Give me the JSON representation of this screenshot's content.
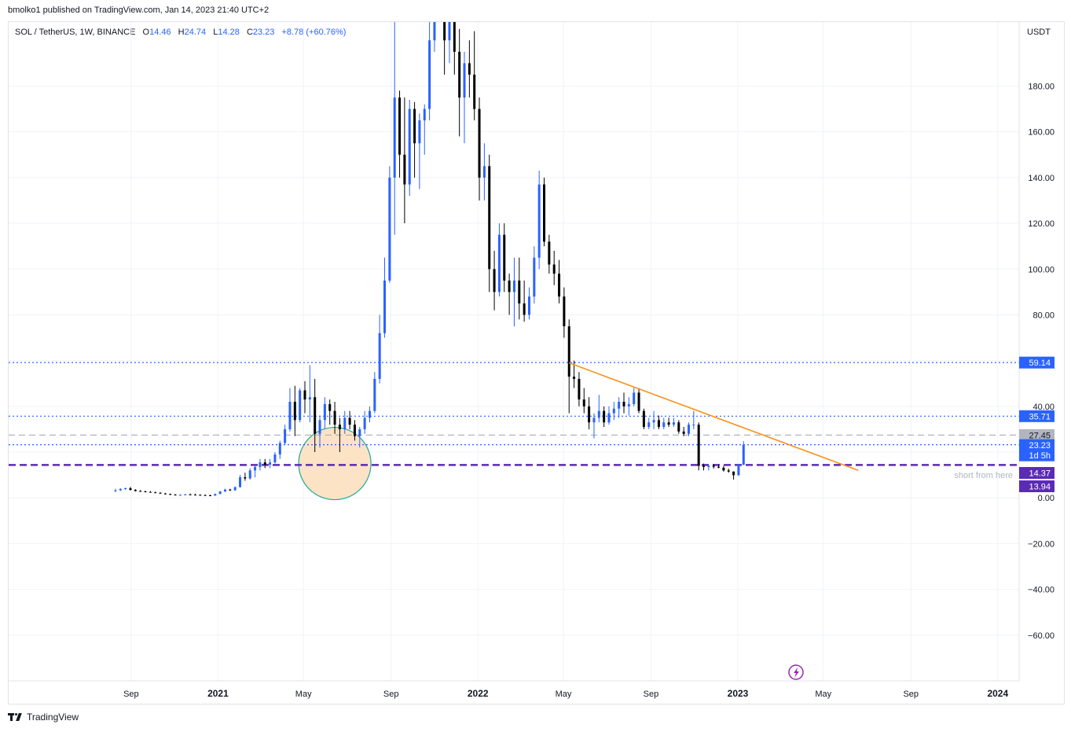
{
  "publisher": "bmolko1 published on TradingView.com, Jan 14, 2023 21:40 UTC+2",
  "legend": {
    "symbol": "SOL / TetherUS, 1W, BINANCE",
    "o_label": "O",
    "o": "14.46",
    "h_label": "H",
    "h": "24.74",
    "l_label": "L",
    "l": "14.28",
    "c_label": "C",
    "c": "23.23",
    "chg": "+8.78 (+60.76%)"
  },
  "footer": {
    "brand": "TradingView"
  },
  "colors": {
    "up": "#2962ff",
    "down": "#000000",
    "trendline": "#f7931a",
    "level_blue": "#2962ff",
    "level_purple": "#5b2bb5",
    "level_gray": "#b2b5be",
    "circle_fill": "#fde3c6",
    "circle_stroke": "#22ab94",
    "event_icon": "#9c27b0"
  },
  "chart_data": {
    "type": "candlestick",
    "ylabel": "USDT",
    "y_tick_labels": [
      "−60.00",
      "−40.00",
      "−20.00",
      "0.00",
      "20.00",
      "40.00",
      "60.00",
      "80.00",
      "100.00",
      "120.00",
      "140.00",
      "160.00",
      "180.00"
    ],
    "y_ticks": [
      -60,
      -40,
      -20,
      0,
      20,
      40,
      60,
      80,
      100,
      120,
      140,
      160,
      180
    ],
    "ylim": [
      -80,
      208
    ],
    "x_tick_labels": [
      "Sep",
      "2021",
      "May",
      "Sep",
      "2022",
      "May",
      "Sep",
      "2023",
      "May",
      "Sep",
      "2024"
    ],
    "x_ticks": [
      "2020-09-01",
      "2021-01-01",
      "2021-05-01",
      "2021-09-01",
      "2022-01-01",
      "2022-05-01",
      "2022-09-01",
      "2023-01-01",
      "2023-05-01",
      "2023-09-01",
      "2024-01-01"
    ],
    "xlim": [
      "2020-03-13",
      "2024-01-31"
    ],
    "grid": true,
    "candles": [
      {
        "date": "2020-08-10",
        "o": 3.0,
        "h": 4.0,
        "l": 2.5,
        "c": 3.3
      },
      {
        "date": "2020-08-17",
        "o": 3.3,
        "h": 4.2,
        "l": 3.0,
        "c": 3.9
      },
      {
        "date": "2020-08-24",
        "o": 3.9,
        "h": 4.5,
        "l": 3.5,
        "c": 4.2
      },
      {
        "date": "2020-08-31",
        "o": 4.2,
        "h": 4.8,
        "l": 3.2,
        "c": 3.5
      },
      {
        "date": "2020-09-07",
        "o": 3.5,
        "h": 3.8,
        "l": 2.8,
        "c": 3.0
      },
      {
        "date": "2020-09-14",
        "o": 3.0,
        "h": 3.4,
        "l": 2.6,
        "c": 2.8
      },
      {
        "date": "2020-09-21",
        "o": 2.8,
        "h": 3.2,
        "l": 2.5,
        "c": 2.6
      },
      {
        "date": "2020-09-28",
        "o": 2.6,
        "h": 3.0,
        "l": 2.3,
        "c": 2.4
      },
      {
        "date": "2020-10-05",
        "o": 2.4,
        "h": 2.7,
        "l": 2.1,
        "c": 2.2
      },
      {
        "date": "2020-10-12",
        "o": 2.2,
        "h": 2.5,
        "l": 1.8,
        "c": 1.9
      },
      {
        "date": "2020-10-19",
        "o": 1.9,
        "h": 2.2,
        "l": 1.5,
        "c": 1.7
      },
      {
        "date": "2020-10-26",
        "o": 1.7,
        "h": 1.9,
        "l": 1.2,
        "c": 1.4
      },
      {
        "date": "2020-11-02",
        "o": 1.4,
        "h": 1.7,
        "l": 1.1,
        "c": 1.3
      },
      {
        "date": "2020-11-09",
        "o": 1.3,
        "h": 1.6,
        "l": 1.0,
        "c": 1.3
      },
      {
        "date": "2020-11-16",
        "o": 1.3,
        "h": 1.7,
        "l": 1.1,
        "c": 1.5
      },
      {
        "date": "2020-11-23",
        "o": 1.5,
        "h": 1.9,
        "l": 1.2,
        "c": 1.4
      },
      {
        "date": "2020-11-30",
        "o": 1.4,
        "h": 1.8,
        "l": 1.1,
        "c": 1.3
      },
      {
        "date": "2020-12-07",
        "o": 1.3,
        "h": 1.6,
        "l": 1.0,
        "c": 1.2
      },
      {
        "date": "2020-12-14",
        "o": 1.2,
        "h": 1.5,
        "l": 0.9,
        "c": 1.1
      },
      {
        "date": "2020-12-21",
        "o": 1.1,
        "h": 1.4,
        "l": 0.9,
        "c": 1.0
      },
      {
        "date": "2020-12-28",
        "o": 1.0,
        "h": 1.9,
        "l": 0.9,
        "c": 1.7
      },
      {
        "date": "2021-01-04",
        "o": 1.7,
        "h": 3.0,
        "l": 1.6,
        "c": 2.8
      },
      {
        "date": "2021-01-11",
        "o": 2.8,
        "h": 4.0,
        "l": 2.6,
        "c": 3.6
      },
      {
        "date": "2021-01-18",
        "o": 3.6,
        "h": 4.0,
        "l": 3.0,
        "c": 3.3
      },
      {
        "date": "2021-01-25",
        "o": 3.3,
        "h": 5.0,
        "l": 3.2,
        "c": 4.7
      },
      {
        "date": "2021-02-01",
        "o": 4.7,
        "h": 10.0,
        "l": 4.5,
        "c": 9.0
      },
      {
        "date": "2021-02-08",
        "o": 9.0,
        "h": 11.0,
        "l": 7.5,
        "c": 8.5
      },
      {
        "date": "2021-02-15",
        "o": 8.5,
        "h": 13.0,
        "l": 8.0,
        "c": 12.0
      },
      {
        "date": "2021-02-22",
        "o": 12.0,
        "h": 14.0,
        "l": 9.0,
        "c": 13.5
      },
      {
        "date": "2021-03-01",
        "o": 13.5,
        "h": 17.0,
        "l": 12.0,
        "c": 15.5
      },
      {
        "date": "2021-03-08",
        "o": 15.5,
        "h": 17.0,
        "l": 13.0,
        "c": 14.5
      },
      {
        "date": "2021-03-15",
        "o": 14.5,
        "h": 17.0,
        "l": 13.0,
        "c": 15.5
      },
      {
        "date": "2021-03-22",
        "o": 15.5,
        "h": 20.0,
        "l": 15.0,
        "c": 19.0
      },
      {
        "date": "2021-03-29",
        "o": 19.0,
        "h": 25.0,
        "l": 17.0,
        "c": 24.0
      },
      {
        "date": "2021-04-05",
        "o": 24.0,
        "h": 32.0,
        "l": 23.0,
        "c": 30.0
      },
      {
        "date": "2021-04-12",
        "o": 30.0,
        "h": 48.0,
        "l": 29.0,
        "c": 42.0
      },
      {
        "date": "2021-04-19",
        "o": 42.0,
        "h": 49.0,
        "l": 27.0,
        "c": 34.0
      },
      {
        "date": "2021-04-26",
        "o": 34.0,
        "h": 48.0,
        "l": 33.0,
        "c": 47.0
      },
      {
        "date": "2021-05-03",
        "o": 47.0,
        "h": 51.0,
        "l": 37.0,
        "c": 43.0
      },
      {
        "date": "2021-05-10",
        "o": 43.0,
        "h": 58.0,
        "l": 33.0,
        "c": 44.0
      },
      {
        "date": "2021-05-17",
        "o": 44.0,
        "h": 52.0,
        "l": 20.0,
        "c": 28.0
      },
      {
        "date": "2021-05-24",
        "o": 28.0,
        "h": 36.0,
        "l": 22.0,
        "c": 34.0
      },
      {
        "date": "2021-05-31",
        "o": 34.0,
        "h": 44.0,
        "l": 30.0,
        "c": 41.0
      },
      {
        "date": "2021-06-07",
        "o": 41.0,
        "h": 43.0,
        "l": 32.0,
        "c": 38.0
      },
      {
        "date": "2021-06-14",
        "o": 38.0,
        "h": 42.0,
        "l": 28.0,
        "c": 32.0
      },
      {
        "date": "2021-06-21",
        "o": 32.0,
        "h": 35.0,
        "l": 20.0,
        "c": 30.0
      },
      {
        "date": "2021-06-28",
        "o": 30.0,
        "h": 38.0,
        "l": 28.0,
        "c": 35.0
      },
      {
        "date": "2021-07-05",
        "o": 35.0,
        "h": 38.0,
        "l": 30.0,
        "c": 32.0
      },
      {
        "date": "2021-07-12",
        "o": 32.0,
        "h": 34.0,
        "l": 25.0,
        "c": 27.0
      },
      {
        "date": "2021-07-19",
        "o": 27.0,
        "h": 31.0,
        "l": 22.0,
        "c": 30.0
      },
      {
        "date": "2021-07-26",
        "o": 30.0,
        "h": 38.0,
        "l": 28.0,
        "c": 35.0
      },
      {
        "date": "2021-08-02",
        "o": 35.0,
        "h": 40.0,
        "l": 33.0,
        "c": 38.0
      },
      {
        "date": "2021-08-09",
        "o": 38.0,
        "h": 55.0,
        "l": 37.0,
        "c": 52.0
      },
      {
        "date": "2021-08-16",
        "o": 52.0,
        "h": 80.0,
        "l": 50.0,
        "c": 72.0
      },
      {
        "date": "2021-08-23",
        "o": 72.0,
        "h": 105.0,
        "l": 70.0,
        "c": 95.0
      },
      {
        "date": "2021-08-30",
        "o": 95.0,
        "h": 145.0,
        "l": 94.0,
        "c": 140.0
      },
      {
        "date": "2021-09-06",
        "o": 140.0,
        "h": 216.0,
        "l": 115.0,
        "c": 175.0
      },
      {
        "date": "2021-09-13",
        "o": 175.0,
        "h": 178.0,
        "l": 140.0,
        "c": 150.0
      },
      {
        "date": "2021-09-20",
        "o": 150.0,
        "h": 175.0,
        "l": 120.0,
        "c": 137.0
      },
      {
        "date": "2021-09-27",
        "o": 137.0,
        "h": 174.0,
        "l": 132.0,
        "c": 170.0
      },
      {
        "date": "2021-10-04",
        "o": 170.0,
        "h": 173.0,
        "l": 140.0,
        "c": 155.0
      },
      {
        "date": "2021-10-11",
        "o": 155.0,
        "h": 168.0,
        "l": 135.0,
        "c": 165.0
      },
      {
        "date": "2021-10-18",
        "o": 165.0,
        "h": 172.0,
        "l": 150.0,
        "c": 170.0
      },
      {
        "date": "2021-10-25",
        "o": 170.0,
        "h": 210.0,
        "l": 165.0,
        "c": 200.0
      },
      {
        "date": "2021-11-01",
        "o": 200.0,
        "h": 259.0,
        "l": 195.0,
        "c": 245.0
      },
      {
        "date": "2021-11-08",
        "o": 245.0,
        "h": 260.0,
        "l": 215.0,
        "c": 235.0
      },
      {
        "date": "2021-11-15",
        "o": 235.0,
        "h": 238.0,
        "l": 185.0,
        "c": 200.0
      },
      {
        "date": "2021-11-22",
        "o": 200.0,
        "h": 232.0,
        "l": 190.0,
        "c": 210.0
      },
      {
        "date": "2021-11-29",
        "o": 210.0,
        "h": 250.0,
        "l": 185.0,
        "c": 195.0
      },
      {
        "date": "2021-12-06",
        "o": 195.0,
        "h": 205.0,
        "l": 158.0,
        "c": 175.0
      },
      {
        "date": "2021-12-13",
        "o": 175.0,
        "h": 195.0,
        "l": 155.0,
        "c": 190.0
      },
      {
        "date": "2021-12-20",
        "o": 190.0,
        "h": 200.0,
        "l": 175.0,
        "c": 185.0
      },
      {
        "date": "2021-12-27",
        "o": 185.0,
        "h": 204.0,
        "l": 165.0,
        "c": 170.0
      },
      {
        "date": "2022-01-03",
        "o": 170.0,
        "h": 175.0,
        "l": 130.0,
        "c": 140.0
      },
      {
        "date": "2022-01-10",
        "o": 140.0,
        "h": 155.0,
        "l": 130.0,
        "c": 145.0
      },
      {
        "date": "2022-01-17",
        "o": 145.0,
        "h": 150.0,
        "l": 90.0,
        "c": 100.0
      },
      {
        "date": "2022-01-24",
        "o": 100.0,
        "h": 108.0,
        "l": 82.0,
        "c": 90.0
      },
      {
        "date": "2022-01-31",
        "o": 90.0,
        "h": 120.0,
        "l": 88.0,
        "c": 115.0
      },
      {
        "date": "2022-02-07",
        "o": 115.0,
        "h": 120.0,
        "l": 90.0,
        "c": 95.0
      },
      {
        "date": "2022-02-14",
        "o": 95.0,
        "h": 98.0,
        "l": 80.0,
        "c": 90.0
      },
      {
        "date": "2022-02-21",
        "o": 90.0,
        "h": 105.0,
        "l": 75.0,
        "c": 95.0
      },
      {
        "date": "2022-02-28",
        "o": 95.0,
        "h": 105.0,
        "l": 78.0,
        "c": 85.0
      },
      {
        "date": "2022-03-07",
        "o": 85.0,
        "h": 95.0,
        "l": 77.0,
        "c": 80.0
      },
      {
        "date": "2022-03-14",
        "o": 80.0,
        "h": 92.0,
        "l": 78.0,
        "c": 88.0
      },
      {
        "date": "2022-03-21",
        "o": 88.0,
        "h": 110.0,
        "l": 85.0,
        "c": 105.0
      },
      {
        "date": "2022-03-28",
        "o": 105.0,
        "h": 143.0,
        "l": 100.0,
        "c": 137.0
      },
      {
        "date": "2022-04-04",
        "o": 137.0,
        "h": 140.0,
        "l": 110.0,
        "c": 112.0
      },
      {
        "date": "2022-04-11",
        "o": 112.0,
        "h": 115.0,
        "l": 98.0,
        "c": 102.0
      },
      {
        "date": "2022-04-18",
        "o": 102.0,
        "h": 108.0,
        "l": 93.0,
        "c": 98.0
      },
      {
        "date": "2022-04-25",
        "o": 98.0,
        "h": 104.0,
        "l": 85.0,
        "c": 88.0
      },
      {
        "date": "2022-05-02",
        "o": 88.0,
        "h": 92.0,
        "l": 70.0,
        "c": 75.0
      },
      {
        "date": "2022-05-09",
        "o": 75.0,
        "h": 78.0,
        "l": 37.0,
        "c": 53.0
      },
      {
        "date": "2022-05-16",
        "o": 53.0,
        "h": 60.0,
        "l": 48.0,
        "c": 52.0
      },
      {
        "date": "2022-05-23",
        "o": 52.0,
        "h": 55.0,
        "l": 40.0,
        "c": 43.0
      },
      {
        "date": "2022-05-30",
        "o": 43.0,
        "h": 48.0,
        "l": 37.0,
        "c": 40.0
      },
      {
        "date": "2022-06-06",
        "o": 40.0,
        "h": 44.0,
        "l": 30.0,
        "c": 33.0
      },
      {
        "date": "2022-06-13",
        "o": 33.0,
        "h": 37.0,
        "l": 26.0,
        "c": 35.0
      },
      {
        "date": "2022-06-20",
        "o": 35.0,
        "h": 45.0,
        "l": 33.0,
        "c": 38.0
      },
      {
        "date": "2022-06-27",
        "o": 38.0,
        "h": 40.0,
        "l": 31.0,
        "c": 33.0
      },
      {
        "date": "2022-07-04",
        "o": 33.0,
        "h": 40.0,
        "l": 32.0,
        "c": 37.0
      },
      {
        "date": "2022-07-11",
        "o": 37.0,
        "h": 42.0,
        "l": 34.0,
        "c": 39.0
      },
      {
        "date": "2022-07-18",
        "o": 39.0,
        "h": 44.0,
        "l": 35.0,
        "c": 42.0
      },
      {
        "date": "2022-07-25",
        "o": 42.0,
        "h": 46.0,
        "l": 37.0,
        "c": 40.0
      },
      {
        "date": "2022-08-01",
        "o": 40.0,
        "h": 44.0,
        "l": 36.0,
        "c": 41.0
      },
      {
        "date": "2022-08-08",
        "o": 41.0,
        "h": 48.0,
        "l": 40.0,
        "c": 46.0
      },
      {
        "date": "2022-08-15",
        "o": 46.0,
        "h": 48.0,
        "l": 37.0,
        "c": 38.0
      },
      {
        "date": "2022-08-22",
        "o": 38.0,
        "h": 39.0,
        "l": 30.0,
        "c": 31.0
      },
      {
        "date": "2022-08-29",
        "o": 31.0,
        "h": 35.0,
        "l": 30.0,
        "c": 33.0
      },
      {
        "date": "2022-09-05",
        "o": 33.0,
        "h": 38.0,
        "l": 30.0,
        "c": 34.0
      },
      {
        "date": "2022-09-12",
        "o": 34.0,
        "h": 36.0,
        "l": 30.0,
        "c": 31.0
      },
      {
        "date": "2022-09-19",
        "o": 31.0,
        "h": 35.0,
        "l": 30.0,
        "c": 33.0
      },
      {
        "date": "2022-09-26",
        "o": 33.0,
        "h": 35.0,
        "l": 31.0,
        "c": 32.0
      },
      {
        "date": "2022-10-03",
        "o": 32.0,
        "h": 35.0,
        "l": 31.0,
        "c": 33.0
      },
      {
        "date": "2022-10-10",
        "o": 33.0,
        "h": 34.0,
        "l": 28.0,
        "c": 29.0
      },
      {
        "date": "2022-10-17",
        "o": 29.0,
        "h": 31.0,
        "l": 27.0,
        "c": 28.0
      },
      {
        "date": "2022-10-24",
        "o": 28.0,
        "h": 33.0,
        "l": 27.0,
        "c": 32.0
      },
      {
        "date": "2022-10-31",
        "o": 32.0,
        "h": 38.0,
        "l": 30.0,
        "c": 32.0
      },
      {
        "date": "2022-11-07",
        "o": 32.0,
        "h": 33.0,
        "l": 12.0,
        "c": 14.0
      },
      {
        "date": "2022-11-14",
        "o": 14.0,
        "h": 15.0,
        "l": 12.0,
        "c": 13.5
      },
      {
        "date": "2022-11-21",
        "o": 13.5,
        "h": 14.5,
        "l": 12.0,
        "c": 14.0
      },
      {
        "date": "2022-11-28",
        "o": 14.0,
        "h": 14.8,
        "l": 12.8,
        "c": 13.6
      },
      {
        "date": "2022-12-05",
        "o": 13.6,
        "h": 14.5,
        "l": 13.0,
        "c": 13.2
      },
      {
        "date": "2022-12-12",
        "o": 13.2,
        "h": 14.0,
        "l": 11.5,
        "c": 12.0
      },
      {
        "date": "2022-12-19",
        "o": 12.0,
        "h": 12.8,
        "l": 11.0,
        "c": 11.5
      },
      {
        "date": "2022-12-26",
        "o": 11.5,
        "h": 11.6,
        "l": 8.0,
        "c": 9.9
      },
      {
        "date": "2023-01-02",
        "o": 9.9,
        "h": 14.8,
        "l": 9.6,
        "c": 14.46
      },
      {
        "date": "2023-01-09",
        "o": 14.46,
        "h": 24.74,
        "l": 14.28,
        "c": 23.23
      }
    ],
    "horizontal_levels": [
      {
        "value": 59.14,
        "label": "59.14",
        "style": "dotted",
        "color": "#2962ff"
      },
      {
        "value": 35.71,
        "label": "35.71",
        "style": "dotted",
        "color": "#2962ff"
      },
      {
        "value": 27.45,
        "label": "27.45",
        "style": "dashed",
        "color": "#b2b5be"
      },
      {
        "value": 23.23,
        "label": "23.23",
        "sublabel": "1d 5h",
        "style": "dotted",
        "color": "#2962ff"
      },
      {
        "value": 14.37,
        "label": "14.37",
        "style": "dashed",
        "color": "#5b2bb5"
      },
      {
        "value": 13.94,
        "label": "13.94",
        "style": "none",
        "color": "#5b2bb5"
      }
    ],
    "trendline": {
      "start": {
        "date": "2022-05-09",
        "value": 59.0
      },
      "end": {
        "date": "2023-06-19",
        "value": 12.0
      }
    },
    "annotations": [
      {
        "type": "text",
        "text": "short from here",
        "value": 10.0
      },
      {
        "type": "circle",
        "center_date": "2021-06-14",
        "center_value": 15.0
      }
    ]
  }
}
